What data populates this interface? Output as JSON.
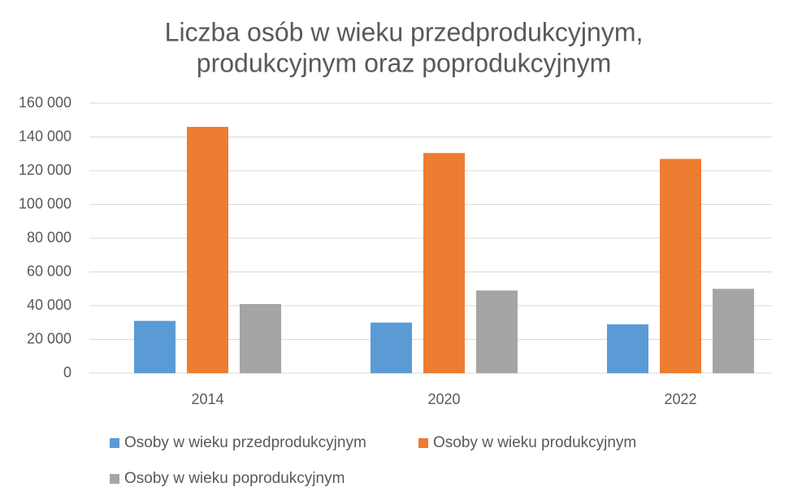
{
  "chart_data": {
    "type": "bar",
    "title": [
      "Liczba osób w wieku przedprodukcyjnym,",
      "produkcyjnym oraz poprodukcyjnym"
    ],
    "categories": [
      "2014",
      "2020",
      "2022"
    ],
    "series": [
      {
        "name": "Osoby w wieku przedprodukcyjnym",
        "color": "#5b9bd5",
        "values": [
          31000,
          30000,
          29000
        ]
      },
      {
        "name": "Osoby w wieku produkcyjnym",
        "color": "#ed7d31",
        "values": [
          146000,
          130500,
          127000
        ]
      },
      {
        "name": "Osoby w wieku poprodukcyjnym",
        "color": "#a5a5a5",
        "values": [
          41000,
          49000,
          50000
        ]
      }
    ],
    "ylim": [
      0,
      160000
    ],
    "yticks": [
      0,
      {
        "value": 20000,
        "label": "20 000"
      },
      {
        "value": 40000,
        "label": "40 000"
      },
      {
        "value": 60000,
        "label": "60 000"
      },
      {
        "value": 80000,
        "label": "80 000"
      },
      {
        "value": 100000,
        "label": "100 000"
      },
      {
        "value": 120000,
        "label": "120 000"
      },
      {
        "value": 140000,
        "label": "140 000"
      },
      {
        "value": 160000,
        "label": "160 000"
      }
    ],
    "grid": true,
    "legend": "bottom"
  }
}
